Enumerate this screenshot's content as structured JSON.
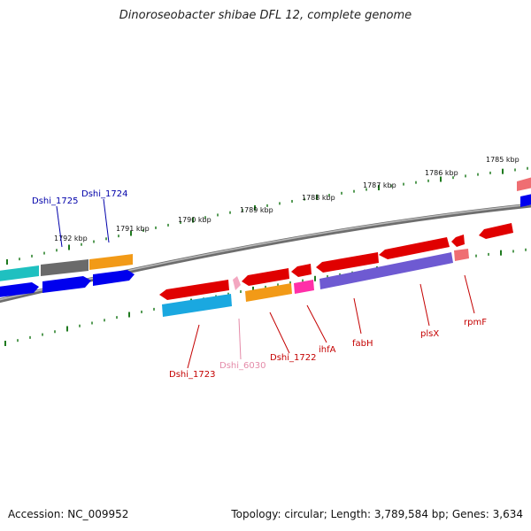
{
  "title": "Dinoroseobacter shibae DFL 12, complete genome",
  "footer": {
    "accession": "Accession: NC_009952",
    "summary": "Topology: circular; Length: 3,789,584 bp; Genes: 3,634"
  },
  "colors": {
    "backbone": "#8a8a8a",
    "tick": "#1f7a1f",
    "label_blue": "#0000aa",
    "label_red": "#c40000",
    "label_pink": "#e48aa8"
  },
  "scale_labels": [
    "1792 kbp",
    "1791 kbp",
    "1790 kbp",
    "1789 kbp",
    "1788 kbp",
    "1787 kbp",
    "1786 kbp",
    "1785 kbp"
  ],
  "gene_labels": {
    "dshi_1725": "Dshi_1725",
    "dshi_1724": "Dshi_1724",
    "dshi_1723": "Dshi_1723",
    "dshi_6030": "Dshi_6030",
    "dshi_1722": "Dshi_1722",
    "ihfa": "ihfA",
    "fabh": "fabH",
    "plsx": "plsX",
    "rpmf": "rpmF"
  }
}
